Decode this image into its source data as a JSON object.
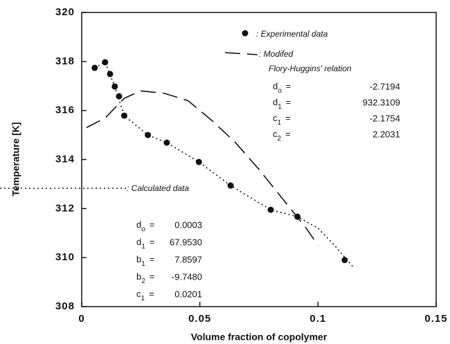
{
  "chart_data": {
    "type": "scatter",
    "xlabel": "Volume fraction of copolymer",
    "ylabel": "Temperature [K]",
    "xlim": [
      0,
      0.15
    ],
    "ylim": [
      308,
      320
    ],
    "xticks": [
      0,
      0.05,
      0.1,
      0.15
    ],
    "yticks": [
      308,
      310,
      312,
      314,
      316,
      318,
      320
    ],
    "series": [
      {
        "name": [
          ": Experimental data"
        ],
        "style": "markers",
        "color": "#111111",
        "x": [
          0.0055,
          0.0099,
          0.012,
          0.014,
          0.0158,
          0.018,
          0.028,
          0.036,
          0.0496,
          0.063,
          0.08,
          0.0913,
          0.1113
        ],
        "values": [
          317.74,
          317.97,
          317.49,
          316.98,
          316.58,
          315.79,
          315.0,
          314.69,
          313.9,
          312.94,
          311.95,
          311.67,
          309.9
        ]
      },
      {
        "name": [
          ": Modifed",
          "Flory-Huggins' relation"
        ],
        "style": "dashed",
        "color": "#111111",
        "x": [
          0.002,
          0.01,
          0.018,
          0.025,
          0.035,
          0.045,
          0.055,
          0.065,
          0.075,
          0.085,
          0.095,
          0.1
        ],
        "values": [
          315.3,
          315.7,
          316.5,
          316.8,
          316.7,
          316.4,
          315.6,
          314.7,
          313.6,
          312.4,
          311.2,
          310.5
        ]
      },
      {
        "name": [
          ": Calculated data"
        ],
        "style": "dotted",
        "color": "#111111",
        "x": [
          0.0055,
          0.0099,
          0.014,
          0.018,
          0.028,
          0.036,
          0.0496,
          0.063,
          0.08,
          0.0913,
          0.1,
          0.107,
          0.115
        ],
        "values": [
          317.74,
          317.97,
          316.98,
          315.79,
          315.0,
          314.69,
          313.9,
          312.94,
          311.95,
          311.67,
          311.2,
          310.5,
          309.6
        ]
      }
    ],
    "parameter_blocks": [
      [
        {
          "symbol": "d",
          "sub": "o",
          "eq": "=",
          "value": "-2.7194"
        },
        {
          "symbol": "d",
          "sub": "1",
          "eq": "=",
          "value": "932.3109"
        },
        {
          "symbol": "c",
          "sub": "1",
          "eq": "=",
          "value": "-2.1754"
        },
        {
          "symbol": "c",
          "sub": "2",
          "eq": "=",
          "value": "2.2031"
        }
      ],
      [
        {
          "symbol": "d",
          "sub": "o",
          "eq": "=",
          "value": "0.0003"
        },
        {
          "symbol": "d",
          "sub": "1",
          "eq": "=",
          "value": "67.9530"
        },
        {
          "symbol": "b",
          "sub": "1",
          "eq": "=",
          "value": "7.8597"
        },
        {
          "symbol": "b",
          "sub": "2",
          "eq": "=",
          "value": "-9.7480"
        },
        {
          "symbol": "c",
          "sub": "1",
          "eq": "=",
          "value": "0.0201"
        }
      ]
    ]
  }
}
